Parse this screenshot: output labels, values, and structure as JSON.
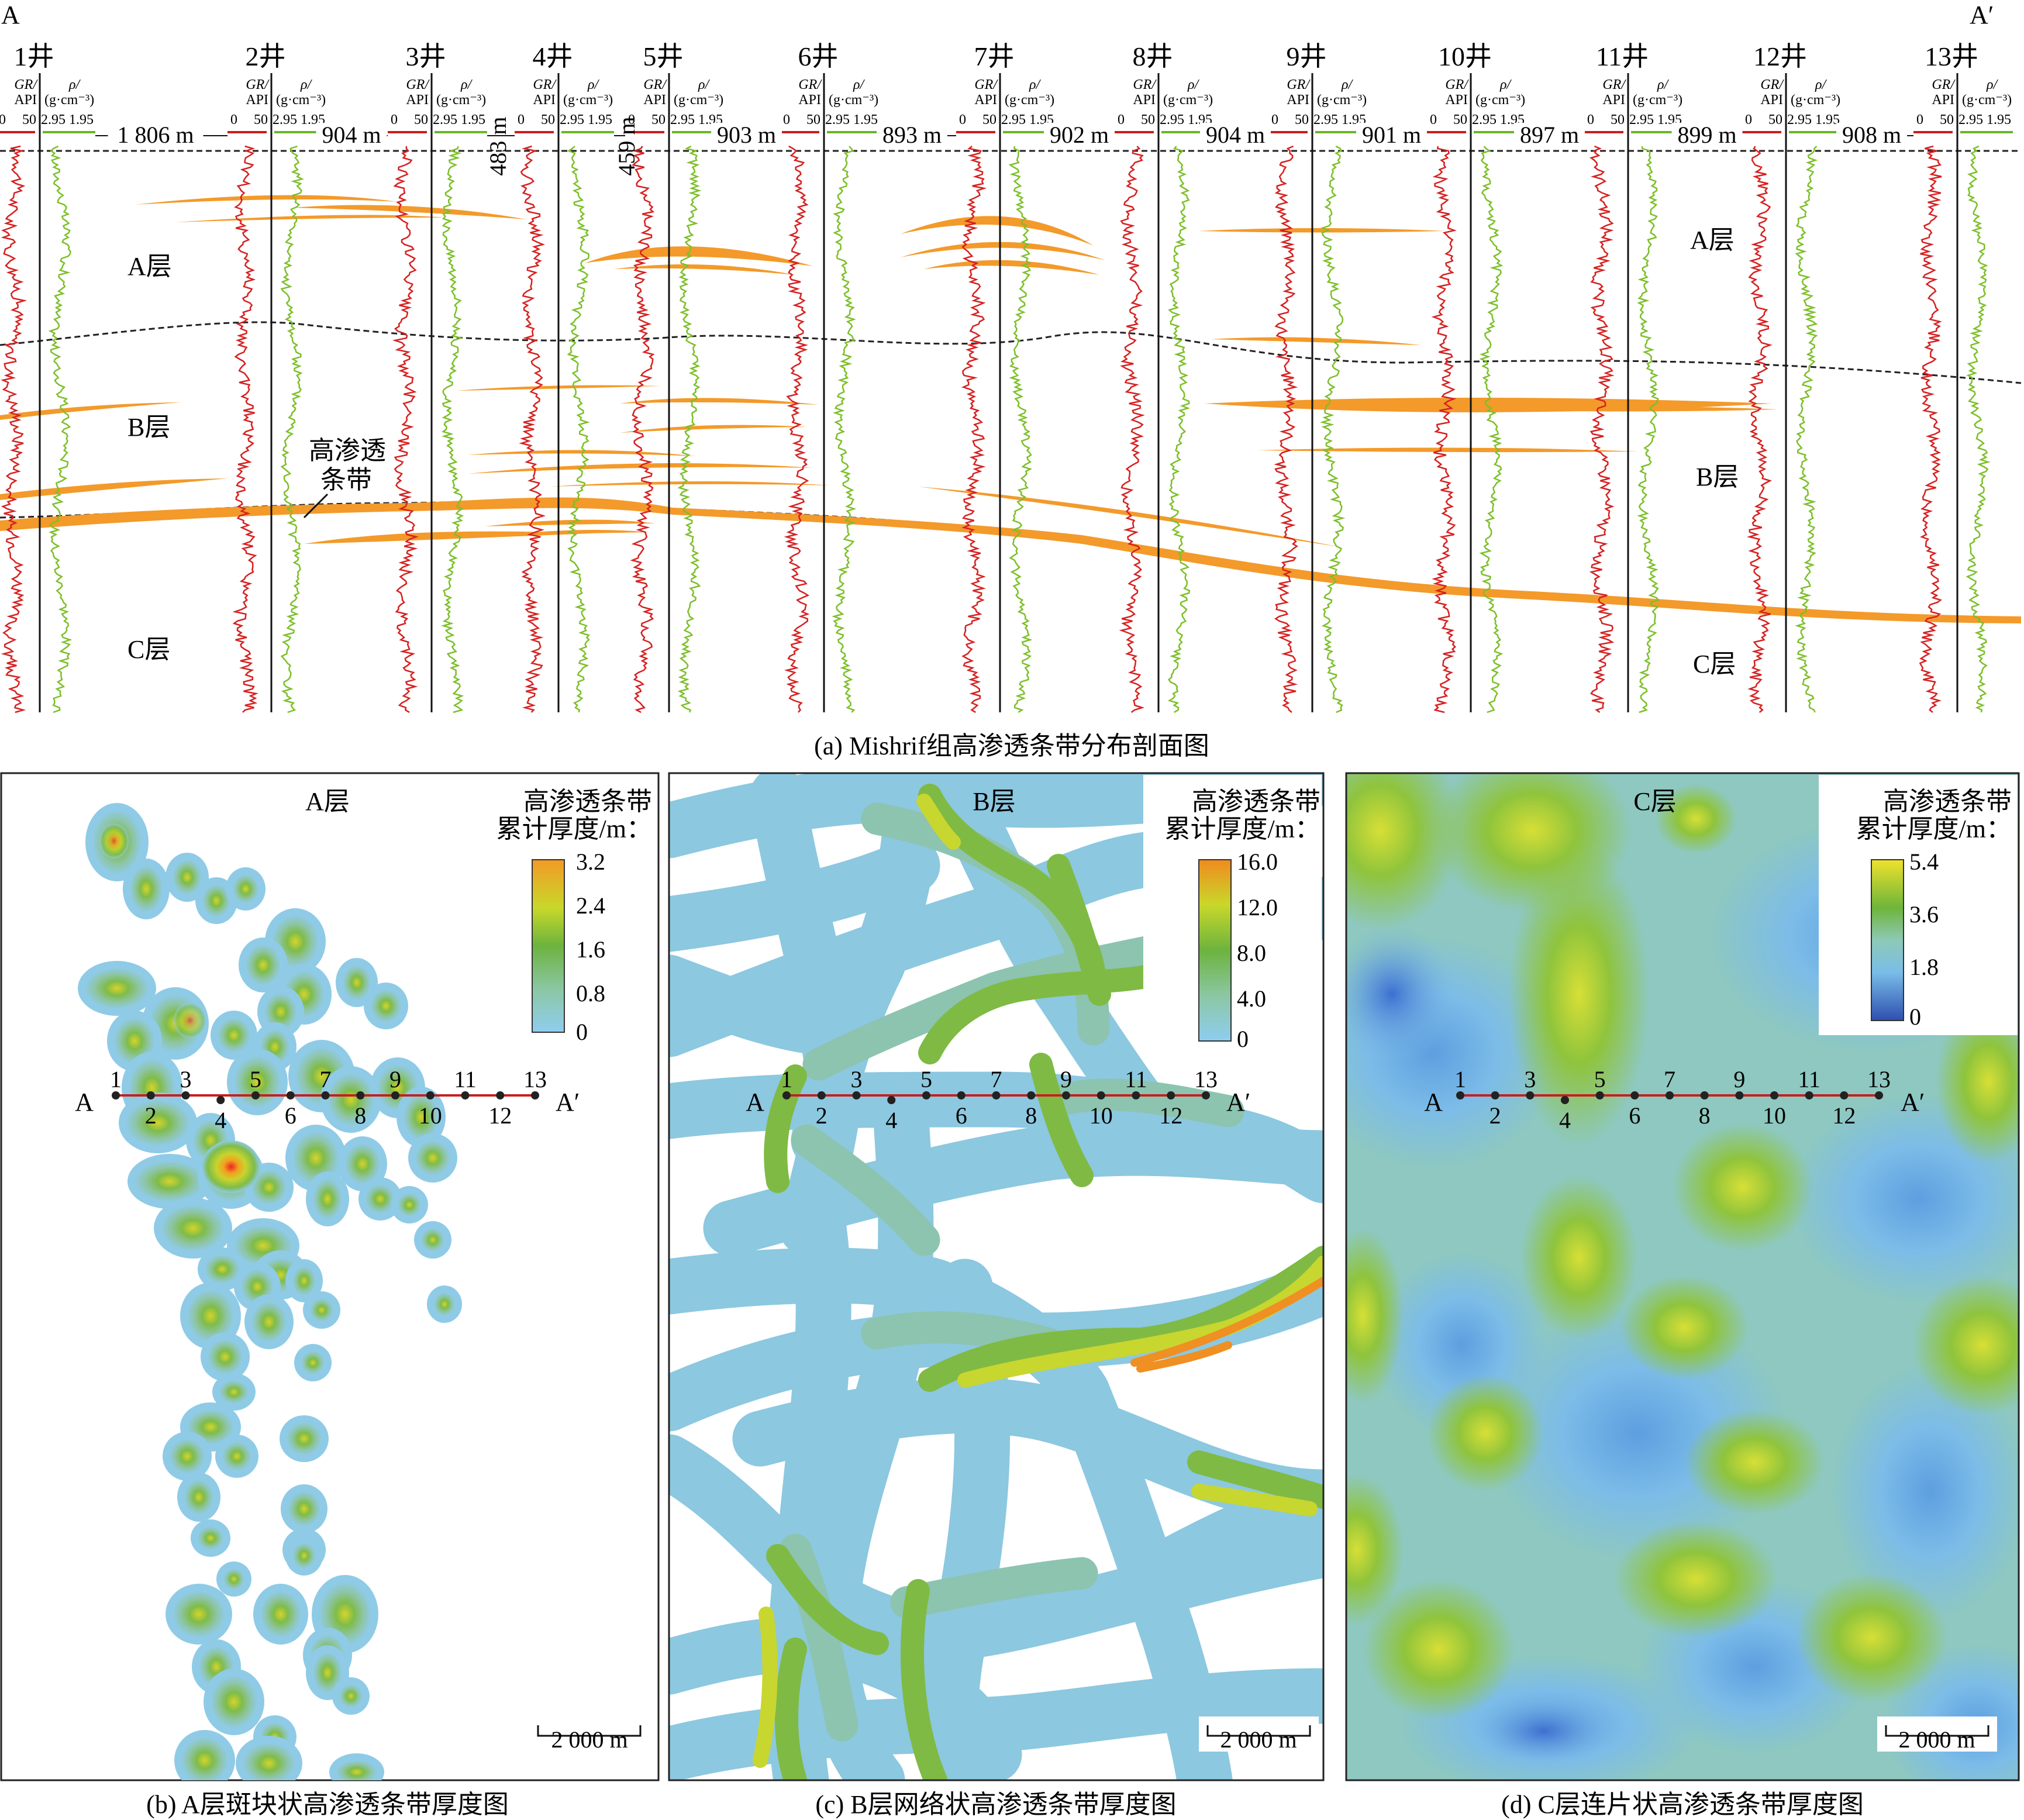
{
  "section": {
    "label_start": "A",
    "label_end": "A′",
    "caption": "(a) Mishrif组高渗透条带分布剖面图",
    "log_header": {
      "gr_label": "GR/",
      "api_label": "API",
      "rho_label": "ρ/",
      "rho_unit": "(g·cm⁻³)",
      "gr_min": "0",
      "gr_max": "50",
      "rho_min": "2.95",
      "rho_max": "1.95"
    },
    "wells": [
      {
        "name": "1井"
      },
      {
        "name": "2井"
      },
      {
        "name": "3井"
      },
      {
        "name": "4井"
      },
      {
        "name": "5井"
      },
      {
        "name": "6井"
      },
      {
        "name": "7井"
      },
      {
        "name": "8井"
      },
      {
        "name": "9井"
      },
      {
        "name": "10井"
      },
      {
        "name": "11井"
      },
      {
        "name": "12井"
      },
      {
        "name": "13井"
      }
    ],
    "spacings": [
      "1 806 m",
      "904 m",
      "483 m",
      "459 m",
      "903 m",
      "893 m",
      "902 m",
      "904 m",
      "901 m",
      "897 m",
      "899 m",
      "908 m"
    ],
    "layers_left": [
      "A层",
      "B层",
      "C层"
    ],
    "layers_right": [
      "A层",
      "B层",
      "C层"
    ],
    "streak_annotation": [
      "高渗透",
      "条带"
    ]
  },
  "maps": [
    {
      "id": "a-layer",
      "title": "A层",
      "caption": "(b) A层斑块状高渗透条带厚度图",
      "legend_title": [
        "高渗透条带",
        "累计厚度/m："
      ],
      "legend_ticks": [
        "3.2",
        "2.4",
        "1.6",
        "0.8",
        "0"
      ],
      "scale_label": "2 000 m",
      "line_start": "A",
      "line_end": "A′",
      "well_numbers": [
        "1",
        "2",
        "3",
        "4",
        "5",
        "6",
        "7",
        "8",
        "9",
        "10",
        "11",
        "12",
        "13"
      ]
    },
    {
      "id": "b-layer",
      "title": "B层",
      "caption": "(c) B层网络状高渗透条带厚度图",
      "legend_title": [
        "高渗透条带",
        "累计厚度/m："
      ],
      "legend_ticks": [
        "16.0",
        "12.0",
        "8.0",
        "4.0",
        "0"
      ],
      "scale_label": "2 000 m",
      "line_start": "A",
      "line_end": "A′",
      "well_numbers": [
        "1",
        "2",
        "3",
        "4",
        "5",
        "6",
        "7",
        "8",
        "9",
        "10",
        "11",
        "12",
        "13"
      ]
    },
    {
      "id": "c-layer",
      "title": "C层",
      "caption": "(d) C层连片状高渗透条带厚度图",
      "legend_title": [
        "高渗透条带",
        "累计厚度/m："
      ],
      "legend_ticks": [
        "5.4",
        "3.6",
        "1.8",
        "0"
      ],
      "scale_label": "2 000 m",
      "line_start": "A",
      "line_end": "A′",
      "well_numbers": [
        "1",
        "2",
        "3",
        "4",
        "5",
        "6",
        "7",
        "8",
        "9",
        "10",
        "11",
        "12",
        "13"
      ]
    }
  ],
  "colors": {
    "streak": "#f39a2a",
    "gr_curve": "#d62020",
    "rho_curve": "#7cbf28",
    "section_line": "#c81e1e",
    "map_low": "#7ec3e6",
    "map_mid": "#6fb24a",
    "map_high": "#f08a1e"
  }
}
